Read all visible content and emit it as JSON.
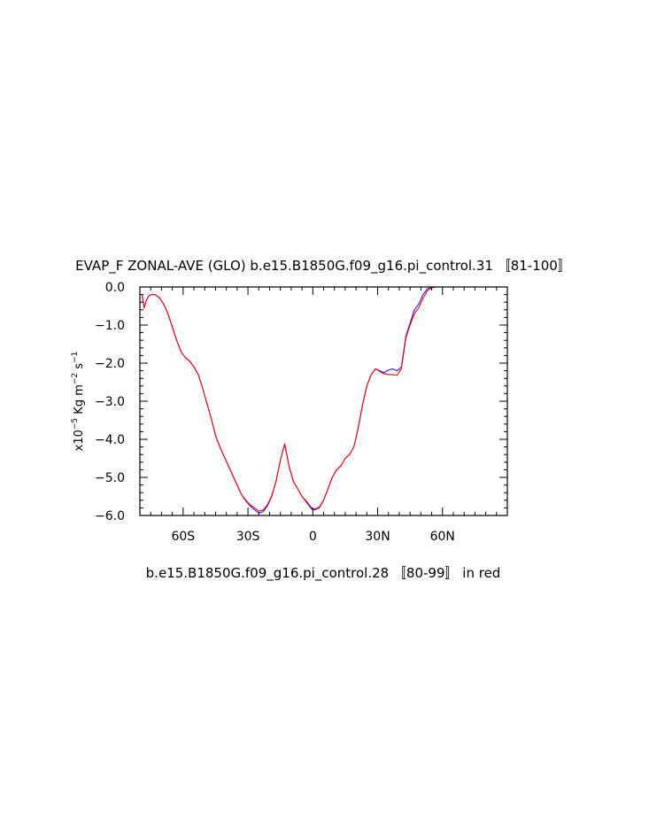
{
  "chart_data": {
    "type": "line",
    "title": "EVAP_F ZONAL-AVE (GLO) b.e15.B1850G.f09_g16.pi_control.31 〚81-100〛",
    "subtitle": "b.e15.B1850G.f09_g16.pi_control.28 〚80-99〛 in red",
    "ylabel_parts": {
      "pre": "x10",
      "exp1": "−5",
      "mid1": " Kg m",
      "exp2": "−2",
      "mid2": " s",
      "exp3": "−1"
    },
    "xlim": [
      -80,
      90
    ],
    "ylim": [
      -6.0,
      0.0
    ],
    "x_ticks": [
      {
        "x": -60,
        "label": "60S"
      },
      {
        "x": -30,
        "label": "30S"
      },
      {
        "x": 0,
        "label": "0"
      },
      {
        "x": 30,
        "label": "30N"
      },
      {
        "x": 60,
        "label": "60N"
      }
    ],
    "y_ticks": [
      {
        "y": 0.0,
        "label": "0.0"
      },
      {
        "y": -1.0,
        "label": "−1.0"
      },
      {
        "y": -2.0,
        "label": "−2.0"
      },
      {
        "y": -3.0,
        "label": "−3.0"
      },
      {
        "y": -4.0,
        "label": "−4.0"
      },
      {
        "y": -5.0,
        "label": "−5.0"
      },
      {
        "y": -6.0,
        "label": "−6.0"
      }
    ],
    "grid": false,
    "series": [
      {
        "color": "#2020ff",
        "x": [
          -79,
          -78,
          -77,
          -76,
          -75,
          -73,
          -71,
          -69,
          -67,
          -65,
          -63,
          -61,
          -59,
          -57,
          -55,
          -53,
          -51,
          -49,
          -47,
          -45,
          -43,
          -41,
          -39,
          -37,
          -35,
          -33,
          -31,
          -29,
          -27,
          -25,
          -23,
          -21,
          -19,
          -17,
          -15,
          -13,
          -11,
          -9,
          -7,
          -5,
          -3,
          -1,
          0,
          1,
          3,
          5,
          7,
          9,
          11,
          13,
          15,
          17,
          19,
          21,
          23,
          25,
          27,
          29,
          31,
          33,
          35,
          37,
          39,
          41,
          43,
          45,
          47,
          49,
          51,
          53,
          55,
          57,
          59,
          61,
          63,
          65,
          67,
          69,
          71,
          73,
          75,
          77,
          79,
          81,
          83,
          85,
          87,
          89
        ],
        "y": [
          -0.2,
          -0.55,
          -0.35,
          -0.25,
          -0.2,
          -0.2,
          -0.28,
          -0.45,
          -0.7,
          -1.05,
          -1.4,
          -1.7,
          -1.85,
          -1.95,
          -2.1,
          -2.3,
          -2.65,
          -3.05,
          -3.45,
          -3.9,
          -4.2,
          -4.45,
          -4.7,
          -4.95,
          -5.2,
          -5.45,
          -5.62,
          -5.75,
          -5.85,
          -5.93,
          -5.9,
          -5.75,
          -5.5,
          -5.1,
          -4.55,
          -4.12,
          -4.7,
          -5.1,
          -5.3,
          -5.5,
          -5.65,
          -5.8,
          -5.85,
          -5.85,
          -5.8,
          -5.6,
          -5.3,
          -5.0,
          -4.8,
          -4.7,
          -4.5,
          -4.4,
          -4.2,
          -3.7,
          -3.1,
          -2.6,
          -2.3,
          -2.15,
          -2.2,
          -2.25,
          -2.18,
          -2.15,
          -2.2,
          -2.1,
          -1.3,
          -0.95,
          -0.6,
          -0.45,
          -0.2,
          -0.05,
          -0.01,
          0.0,
          0.0,
          0.0,
          0.0,
          0.0,
          0.0,
          0.0,
          0.0,
          0.0,
          0.0,
          0.0,
          0.0,
          0.0,
          0.0,
          0.0,
          0.0,
          0.0
        ]
      },
      {
        "color": "#ff0000",
        "x": [
          -79,
          -78,
          -77,
          -76,
          -75,
          -73,
          -71,
          -69,
          -67,
          -65,
          -63,
          -61,
          -59,
          -57,
          -55,
          -53,
          -51,
          -49,
          -47,
          -45,
          -43,
          -41,
          -39,
          -37,
          -35,
          -33,
          -31,
          -29,
          -27,
          -25,
          -23,
          -21,
          -19,
          -17,
          -15,
          -13,
          -11,
          -9,
          -7,
          -5,
          -3,
          -1,
          0,
          1,
          3,
          5,
          7,
          9,
          11,
          13,
          15,
          17,
          19,
          21,
          23,
          25,
          27,
          29,
          31,
          33,
          35,
          37,
          39,
          41,
          43,
          45,
          47,
          49,
          51,
          53,
          55,
          57,
          59,
          61,
          63,
          65,
          67,
          69,
          71,
          73,
          75,
          77,
          79,
          81,
          83,
          85,
          87,
          89
        ],
        "y": [
          -0.2,
          -0.55,
          -0.35,
          -0.25,
          -0.2,
          -0.2,
          -0.28,
          -0.45,
          -0.7,
          -1.05,
          -1.4,
          -1.7,
          -1.85,
          -1.95,
          -2.1,
          -2.3,
          -2.65,
          -3.05,
          -3.45,
          -3.9,
          -4.2,
          -4.45,
          -4.7,
          -4.95,
          -5.2,
          -5.45,
          -5.6,
          -5.72,
          -5.8,
          -5.88,
          -5.86,
          -5.72,
          -5.48,
          -5.1,
          -4.55,
          -4.12,
          -4.7,
          -5.1,
          -5.3,
          -5.5,
          -5.62,
          -5.77,
          -5.82,
          -5.83,
          -5.78,
          -5.6,
          -5.3,
          -5.0,
          -4.8,
          -4.7,
          -4.5,
          -4.4,
          -4.2,
          -3.7,
          -3.1,
          -2.6,
          -2.3,
          -2.15,
          -2.22,
          -2.28,
          -2.3,
          -2.3,
          -2.32,
          -2.15,
          -1.35,
          -1.0,
          -0.7,
          -0.55,
          -0.3,
          -0.1,
          -0.02,
          0.0,
          0.0,
          0.0,
          0.0,
          0.0,
          0.0,
          0.0,
          0.0,
          0.0,
          0.0,
          0.0,
          0.0,
          0.0,
          0.0,
          0.0,
          0.0,
          0.0
        ]
      }
    ]
  }
}
